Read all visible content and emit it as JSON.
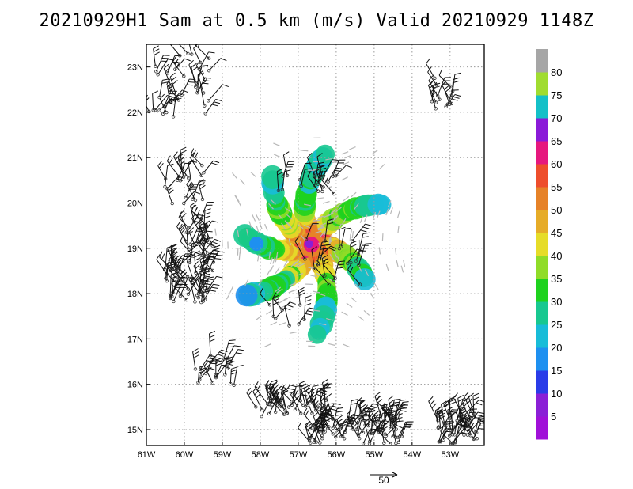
{
  "title": "20210929H1 Sam at 0.5 km (m/s) Valid 20210929  1148Z",
  "chart_data": {
    "type": "heatmap",
    "title": "20210929H1 Sam at 0.5 km (m/s) Valid 20210929  1148Z",
    "x_ticks": [
      "61W",
      "60W",
      "59W",
      "58W",
      "57W",
      "56W",
      "55W",
      "54W",
      "53W"
    ],
    "x_tick_values": [
      -61,
      -60,
      -59,
      -58,
      -57,
      -56,
      -55,
      -54,
      -53
    ],
    "y_ticks": [
      "15N",
      "16N",
      "17N",
      "18N",
      "19N",
      "20N",
      "21N",
      "22N",
      "23N"
    ],
    "y_tick_values": [
      15,
      16,
      17,
      18,
      19,
      20,
      21,
      22,
      23
    ],
    "xlim": [
      -61,
      -52.1
    ],
    "ylim": [
      14.65,
      23.5
    ],
    "grid": true,
    "storm_center": {
      "lon": -56.65,
      "lat": 19.08
    },
    "field_max_ms": 80,
    "colorbar": {
      "labels": [
        "5",
        "10",
        "15",
        "20",
        "25",
        "30",
        "35",
        "40",
        "45",
        "50",
        "55",
        "60",
        "65",
        "70",
        "75",
        "80"
      ],
      "values": [
        5,
        10,
        15,
        20,
        25,
        30,
        35,
        40,
        45,
        50,
        55,
        60,
        65,
        70,
        75,
        80
      ],
      "colors": [
        "#a010d8",
        "#8a1fd6",
        "#2a3ce8",
        "#1e90f0",
        "#18bcd8",
        "#18c890",
        "#1ed21e",
        "#90dc28",
        "#e6dc28",
        "#e6ac28",
        "#e68228",
        "#ee4e2c",
        "#e6187e",
        "#8a1ad8",
        "#14c0c8",
        "#a0dc30",
        "#a6a6a6"
      ]
    },
    "reference_vector": {
      "label": "50",
      "value": 50
    },
    "observation_barbs": "dense station barbs around the islands and along the southern edge"
  }
}
